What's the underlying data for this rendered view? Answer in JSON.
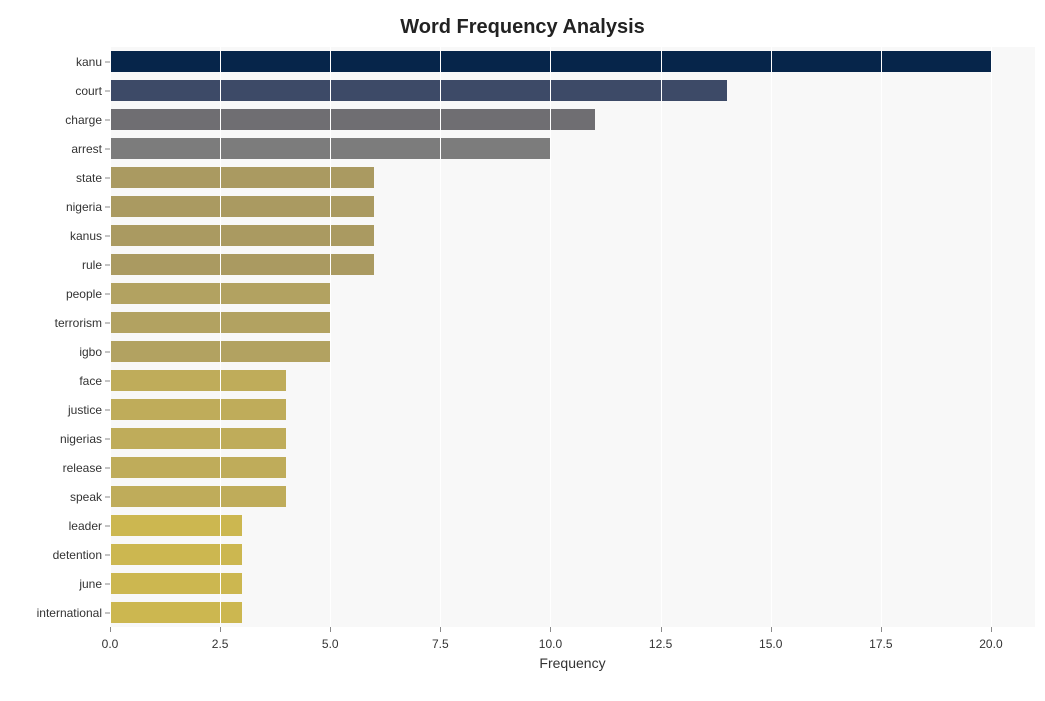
{
  "chart": {
    "type": "bar-horizontal",
    "title": "Word Frequency Analysis",
    "title_fontsize": 20,
    "title_fontweight": "bold",
    "xlabel": "Frequency",
    "xlabel_fontsize": 14,
    "background_color": "#ffffff",
    "plot_background_color": "#f8f8f8",
    "grid_color": "#ffffff",
    "text_color": "#333333",
    "xlim": [
      0,
      21
    ],
    "xticks": [
      0.0,
      2.5,
      5.0,
      7.5,
      10.0,
      12.5,
      15.0,
      17.5,
      20.0
    ],
    "xtick_labels": [
      "0.0",
      "2.5",
      "5.0",
      "7.5",
      "10.0",
      "12.5",
      "15.0",
      "17.5",
      "20.0"
    ],
    "bar_height_ratio": 0.72,
    "categories": [
      "kanu",
      "court",
      "charge",
      "arrest",
      "state",
      "nigeria",
      "kanus",
      "rule",
      "people",
      "terrorism",
      "igbo",
      "face",
      "justice",
      "nigerias",
      "release",
      "speak",
      "leader",
      "detention",
      "june",
      "international"
    ],
    "values": [
      20,
      14,
      11,
      10,
      6,
      6,
      6,
      6,
      5,
      5,
      5,
      4,
      4,
      4,
      4,
      4,
      3,
      3,
      3,
      3
    ],
    "bar_colors": [
      "#06254a",
      "#3d4a67",
      "#6f6e72",
      "#7c7c7c",
      "#aa9a61",
      "#aa9a61",
      "#aa9a61",
      "#aa9a61",
      "#b2a261",
      "#b2a261",
      "#b2a261",
      "#bfac5a",
      "#bfac5a",
      "#bfac5a",
      "#bfac5a",
      "#bfac5a",
      "#ccb750",
      "#ccb750",
      "#ccb750",
      "#ccb750"
    ]
  }
}
